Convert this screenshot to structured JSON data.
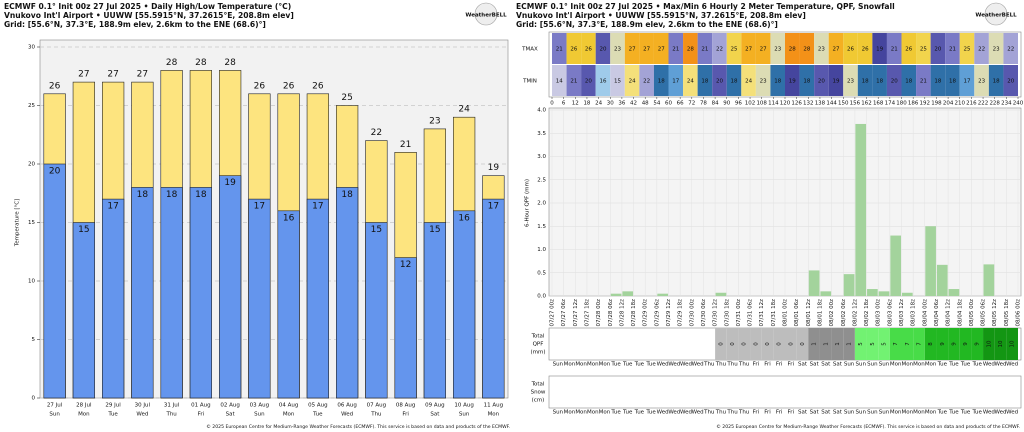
{
  "panels": [
    {
      "lines": [
        "ECMWF 0.1° Init 00z 27 Jul 2025 • Daily High/Low Temperature (°C)",
        "Vnukovo Int'l Airport • UUWW [55.5915°N, 37.2615°E, 208.8m elev]",
        "Grid: [55.6°N, 37.3°E, 188.9m elev, 2.6km to the ENE (68.6)°]"
      ],
      "logo": "WeatherBELL",
      "footer": "© 2025 European Centre for Medium-Range Weather Forecasts (ECMWF). This service is based on data and products of the ECMWF."
    },
    {
      "lines": [
        "ECMWF 0.1° Init 00z 27 Jul 2025 • Max/Min 6 Hourly 2 Meter Temperature, QPF, Snowfall",
        "Vnukovo Int'l Airport • UUWW [55.5915°N, 37.2615°E, 208.8m elev]",
        "Grid: [55.6°N, 37.3°E, 188.9m elev, 2.6km to the ENE (68.6)°]"
      ],
      "logo": "WeatherBELL",
      "footer": "© 2025 European Centre for Medium-Range Weather Forecasts (ECMWF). This service is based on data and products of the ECMWF."
    }
  ],
  "chart_data": [
    {
      "type": "bar",
      "ylabel": "Temperature [°C]",
      "categories": [
        "27 Jul",
        "28 Jul",
        "29 Jul",
        "30 Jul",
        "31 Jul",
        "01 Aug",
        "02 Aug",
        "03 Aug",
        "04 Aug",
        "05 Aug",
        "06 Aug",
        "07 Aug",
        "08 Aug",
        "09 Aug",
        "10 Aug",
        "11 Aug"
      ],
      "weekdays": [
        "Sun",
        "Mon",
        "Tue",
        "Wed",
        "Thu",
        "Fri",
        "Sat",
        "Sun",
        "Mon",
        "Tue",
        "Wed",
        "Thu",
        "Fri",
        "Sat",
        "Sun",
        "Mon"
      ],
      "series": [
        {
          "color": "#fde47f",
          "values": [
            26,
            27,
            27,
            27,
            28,
            28,
            28,
            26,
            26,
            26,
            25,
            22,
            21,
            23,
            24,
            19
          ]
        },
        {
          "color": "#6495ed",
          "values": [
            20,
            15,
            17,
            18,
            18,
            18,
            19,
            17,
            16,
            17,
            18,
            15,
            12,
            15,
            16,
            17
          ]
        }
      ],
      "ylim": [
        0,
        30
      ],
      "yticks": [
        0,
        5,
        10,
        15,
        20,
        25,
        30
      ],
      "grid": true
    },
    {
      "type": "table",
      "rows": [
        {
          "label": "TMAX",
          "values": [
            21,
            26,
            26,
            20,
            23,
            27,
            27,
            27,
            21,
            28,
            21,
            22,
            25,
            27,
            27,
            23,
            28,
            28,
            23,
            27,
            26,
            26,
            19,
            21,
            26,
            25,
            20,
            21,
            25,
            22,
            23,
            22
          ]
        },
        {
          "label": "TMIN",
          "values": [
            14,
            21,
            20,
            16,
            15,
            24,
            22,
            18,
            17,
            24,
            18,
            20,
            18,
            24,
            23,
            18,
            19,
            18,
            20,
            19,
            23,
            18,
            18,
            20,
            18,
            21,
            18,
            18,
            17,
            23,
            18,
            20
          ]
        }
      ],
      "xlim": [
        0,
        240
      ],
      "xticks": [
        0,
        6,
        12,
        18,
        24,
        30,
        36,
        42,
        48,
        54,
        60,
        66,
        72,
        78,
        84,
        90,
        96,
        102,
        108,
        114,
        120,
        126,
        132,
        138,
        144,
        150,
        156,
        162,
        168,
        174,
        180,
        186,
        192,
        198,
        204,
        210,
        216,
        222,
        228,
        234,
        240
      ]
    },
    {
      "type": "histogram",
      "ylabel": "6-Hour QPF (mm)",
      "color": "#a3d39c",
      "bins": [
        0,
        6,
        12,
        18,
        24,
        30,
        36,
        42,
        48,
        54,
        60,
        66,
        72,
        78,
        84,
        90,
        96,
        102,
        108,
        114,
        120,
        126,
        132,
        138,
        144,
        150,
        156,
        162,
        168,
        174,
        180,
        186,
        192,
        198,
        204,
        210,
        216,
        222,
        228,
        234,
        240
      ],
      "values": [
        0,
        0,
        0,
        0,
        0,
        0.05,
        0.1,
        0,
        0,
        0.05,
        0,
        0,
        0,
        0,
        0.07,
        0,
        0,
        0,
        0,
        0,
        0,
        0,
        0.55,
        0.1,
        0,
        0.47,
        3.7,
        0.15,
        0.1,
        1.3,
        0.07,
        0,
        1.5,
        0.67,
        0.15,
        0,
        0,
        0.68,
        0,
        0
      ],
      "xlim": [
        0,
        240
      ],
      "ylim": [
        0,
        4
      ],
      "yticks": [
        {
          "value": 0,
          "label": "0.0"
        },
        {
          "value": 0.5,
          "label": "0.5"
        },
        {
          "value": 1,
          "label": "1.0"
        },
        {
          "value": 1.5,
          "label": "1.5"
        },
        {
          "value": 2,
          "label": "2.0"
        },
        {
          "value": 2.5,
          "label": "2.5"
        },
        {
          "value": 3,
          "label": "3.0"
        },
        {
          "value": 3.5,
          "label": "3.5"
        },
        {
          "value": 4,
          "label": "4.0"
        }
      ],
      "xticks": [
        {
          "value": 0,
          "label": "07/27 00z"
        },
        {
          "value": 6,
          "label": "07/27 06z"
        },
        {
          "value": 12,
          "label": "07/27 12z"
        },
        {
          "value": 18,
          "label": "07/27 18z"
        },
        {
          "value": 24,
          "label": "07/28 00z"
        },
        {
          "value": 30,
          "label": "07/28 06z"
        },
        {
          "value": 36,
          "label": "07/28 12z"
        },
        {
          "value": 42,
          "label": "07/28 18z"
        },
        {
          "value": 48,
          "label": "07/29 00z"
        },
        {
          "value": 54,
          "label": "07/29 06z"
        },
        {
          "value": 60,
          "label": "07/29 12z"
        },
        {
          "value": 66,
          "label": "07/29 18z"
        },
        {
          "value": 72,
          "label": "07/30 00z"
        },
        {
          "value": 78,
          "label": "07/30 06z"
        },
        {
          "value": 84,
          "label": "07/30 12z"
        },
        {
          "value": 90,
          "label": "07/30 18z"
        },
        {
          "value": 96,
          "label": "07/31 00z"
        },
        {
          "value": 102,
          "label": "07/31 06z"
        },
        {
          "value": 108,
          "label": "07/31 12z"
        },
        {
          "value": 114,
          "label": "07/31 18z"
        },
        {
          "value": 120,
          "label": "08/01 00z"
        },
        {
          "value": 126,
          "label": "08/01 06z"
        },
        {
          "value": 132,
          "label": "08/01 12z"
        },
        {
          "value": 138,
          "label": "08/01 18z"
        },
        {
          "value": 144,
          "label": "08/02 00z"
        },
        {
          "value": 150,
          "label": "08/02 06z"
        },
        {
          "value": 156,
          "label": "08/02 12z"
        },
        {
          "value": 162,
          "label": "08/02 18z"
        },
        {
          "value": 168,
          "label": "08/03 00z"
        },
        {
          "value": 174,
          "label": "08/03 06z"
        },
        {
          "value": 180,
          "label": "08/03 12z"
        },
        {
          "value": 186,
          "label": "08/03 18z"
        },
        {
          "value": 192,
          "label": "08/04 00z"
        },
        {
          "value": 198,
          "label": "08/04 06z"
        },
        {
          "value": 204,
          "label": "08/04 12z"
        },
        {
          "value": 210,
          "label": "08/04 18z"
        },
        {
          "value": 216,
          "label": "08/05 00z"
        },
        {
          "value": 222,
          "label": "08/05 06z"
        },
        {
          "value": 228,
          "label": "08/05 12z"
        },
        {
          "value": 234,
          "label": "08/05 18z"
        },
        {
          "value": 240,
          "label": "08/06 00z"
        }
      ],
      "grid": true
    },
    {
      "type": "cells",
      "label": [
        "Total",
        "QPF",
        "(mm)"
      ],
      "categories": [
        "Sun",
        "Mon",
        "Mon",
        "Mon",
        "Mon",
        "Tue",
        "Tue",
        "Tue",
        "Tue",
        "Wed",
        "Wed",
        "Wed",
        "Wed",
        "Thu",
        "Thu",
        "Thu",
        "Thu",
        "Fri",
        "Fri",
        "Fri",
        "Fri",
        "Sat",
        "Sat",
        "Sat",
        "Sat",
        "Sun",
        "Sun",
        "Sun",
        "Sun",
        "Mon",
        "Mon",
        "Mon",
        "Mon",
        "Tue",
        "Tue",
        "Tue",
        "Tue",
        "Wed",
        "Wed",
        "Wed"
      ],
      "values": [
        null,
        null,
        null,
        null,
        null,
        null,
        null,
        null,
        null,
        null,
        null,
        null,
        null,
        null,
        0,
        0,
        0,
        0,
        0,
        0,
        0,
        0,
        1,
        1,
        1,
        1,
        5,
        5,
        5,
        7,
        7,
        7,
        8,
        9,
        9,
        9,
        9,
        10,
        10,
        10
      ]
    },
    {
      "type": "cells",
      "label": [
        "Total",
        "Snow",
        "(cm)"
      ],
      "categories": [
        "Sun",
        "Mon",
        "Mon",
        "Mon",
        "Mon",
        "Tue",
        "Tue",
        "Tue",
        "Tue",
        "Wed",
        "Wed",
        "Wed",
        "Wed",
        "Thu",
        "Thu",
        "Thu",
        "Thu",
        "Fri",
        "Fri",
        "Fri",
        "Fri",
        "Sat",
        "Sat",
        "Sat",
        "Sat",
        "Sun",
        "Sun",
        "Sun",
        "Sun",
        "Mon",
        "Mon",
        "Mon",
        "Mon",
        "Tue",
        "Tue",
        "Tue",
        "Tue",
        "Wed",
        "Wed",
        "Wed"
      ]
    }
  ]
}
